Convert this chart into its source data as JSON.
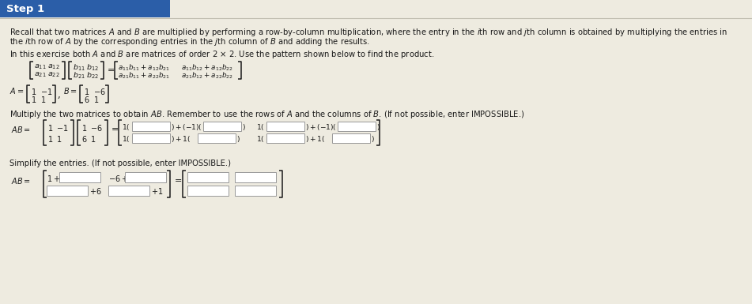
{
  "bg_color": "#eeebe0",
  "header_bg": "#2b5ea8",
  "header_text": "Step 1",
  "header_text_color": "#ffffff",
  "body_text_color": "#1a1a1a",
  "input_box_color": "#ffffff",
  "input_box_edge": "#aaaaaa",
  "fig_width": 9.51,
  "fig_height": 3.85,
  "dpi": 100
}
